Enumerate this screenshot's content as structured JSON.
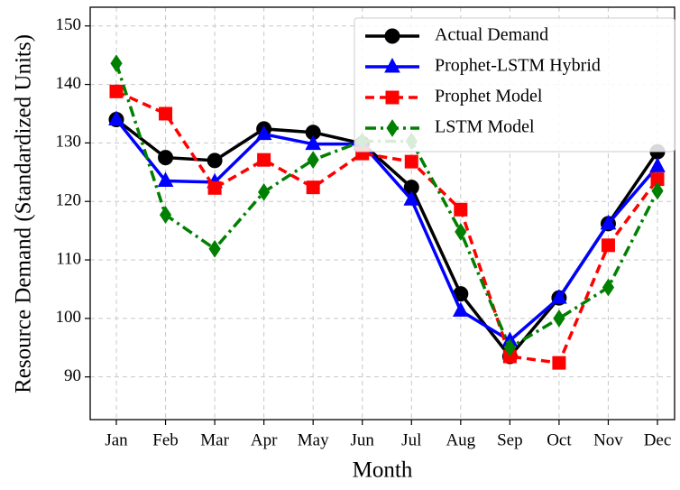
{
  "chart_data": {
    "type": "line",
    "x_label": "Month",
    "y_label": "Resource Demand (Standardized Units)",
    "categories": [
      "Jan",
      "Feb",
      "Mar",
      "Apr",
      "May",
      "Jun",
      "Jul",
      "Aug",
      "Sep",
      "Oct",
      "Nov",
      "Dec"
    ],
    "series": [
      {
        "name": "Actual Demand",
        "color": "#000000",
        "marker": "circle",
        "linestyle": "solid",
        "values": [
          134.0,
          127.5,
          127.0,
          132.4,
          131.8,
          129.9,
          122.4,
          104.2,
          93.5,
          103.5,
          116.2,
          128.5
        ]
      },
      {
        "name": "Prophet-LSTM Hybrid",
        "color": "#0000ff",
        "marker": "triangle",
        "linestyle": "solid",
        "values": [
          134.0,
          123.5,
          123.3,
          131.5,
          129.8,
          129.8,
          120.3,
          101.3,
          96.2,
          103.5,
          116.2,
          126.0
        ]
      },
      {
        "name": "Prophet Model",
        "color": "#ff0000",
        "marker": "square",
        "linestyle": "dashed",
        "values": [
          138.8,
          135.0,
          122.3,
          127.1,
          122.4,
          128.2,
          126.8,
          118.6,
          93.5,
          92.4,
          112.5,
          123.8
        ]
      },
      {
        "name": "LSTM Model",
        "color": "#008000",
        "marker": "diamond",
        "linestyle": "dashdot",
        "values": [
          143.6,
          117.7,
          111.9,
          121.6,
          127.1,
          130.3,
          130.3,
          114.8,
          95.0,
          100.0,
          105.3,
          121.8
        ]
      }
    ],
    "ylim": [
      82.7,
      153.2
    ],
    "yticks": [
      90,
      100,
      110,
      120,
      130,
      140,
      150
    ],
    "grid": true,
    "legend": "upper right"
  }
}
